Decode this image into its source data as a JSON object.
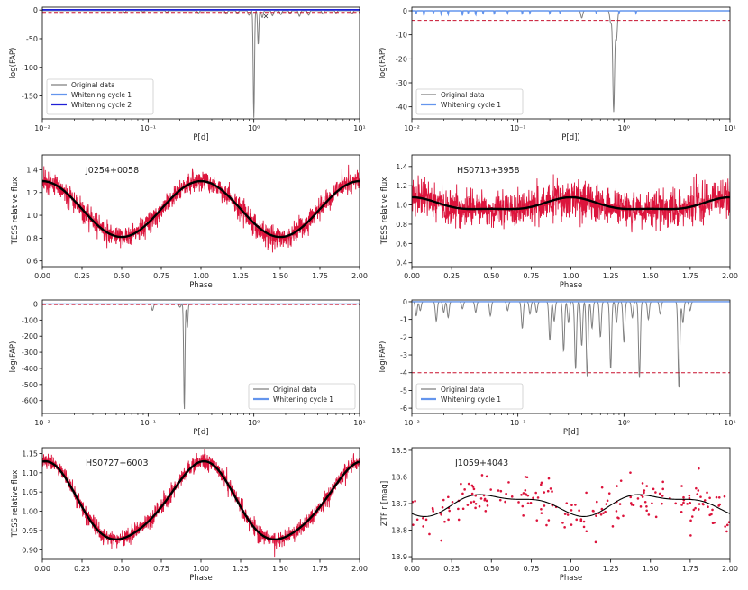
{
  "figure": {
    "width": 830,
    "height": 655
  },
  "colors": {
    "original": "#7f7f7f",
    "w1": "#6495ed",
    "w2": "#1f1fd6",
    "thresh": "#c8102e",
    "tess": "#dc143c",
    "model": "#000000"
  },
  "chart_data": [
    {
      "id": "p1",
      "type": "line",
      "scale": "log",
      "xlabel": "P[d]",
      "ylabel": "log(FAP)",
      "xlim": [
        0.01,
        10
      ],
      "ylim": [
        -190,
        5
      ],
      "xticks": [
        0.01,
        0.1,
        1,
        10
      ],
      "xticklabels": [
        "10⁻²",
        "10⁻¹",
        "10⁰",
        "10¹"
      ],
      "yticks": [
        0,
        -50,
        -100,
        -150
      ],
      "yticklabels": [
        "0",
        "-50",
        "-100",
        "-150"
      ],
      "threshold": -4,
      "baseline": {
        "original": -1,
        "w1": 0,
        "w2": 0.5
      },
      "dips": [
        [
          0.06,
          -3
        ],
        [
          0.09,
          -2
        ],
        [
          0.15,
          -3
        ],
        [
          0.3,
          -4
        ],
        [
          0.55,
          -6
        ],
        [
          0.7,
          -5
        ],
        [
          0.9,
          -8
        ],
        [
          1.0,
          -187
        ],
        [
          1.1,
          -60
        ],
        [
          1.2,
          -12
        ],
        [
          1.5,
          -9
        ],
        [
          1.8,
          -7
        ],
        [
          2.2,
          -5
        ],
        [
          2.7,
          -10
        ],
        [
          3.3,
          -8
        ],
        [
          4.5,
          -6
        ],
        [
          6.0,
          -4
        ],
        [
          8.5,
          -5
        ]
      ],
      "w1_dips": [],
      "w2_dips": [],
      "markers": [
        {
          "x": 1.3,
          "y": -10,
          "symbol": "×"
        }
      ],
      "legend": [
        "Original data",
        "Whitening cycle 1",
        "Whitening cycle 2"
      ],
      "legend_pos": "bottom-left"
    },
    {
      "id": "p2",
      "type": "line",
      "scale": "log",
      "xlabel": "P[d])",
      "ylabel": "log(FAP)",
      "xlim": [
        0.01,
        10
      ],
      "ylim": [
        -45,
        1.5
      ],
      "xticks": [
        0.01,
        0.1,
        1,
        10
      ],
      "xticklabels": [
        "10⁻²",
        "10⁻¹",
        "10⁰",
        "10¹"
      ],
      "yticks": [
        0,
        -10,
        -20,
        -30,
        -40
      ],
      "yticklabels": [
        "0",
        "-10",
        "-20",
        "-30",
        "-40"
      ],
      "threshold": -4,
      "baseline": {
        "original": 0,
        "w1": 0
      },
      "dips": [
        [
          0.4,
          -3
        ],
        [
          0.75,
          -5
        ],
        [
          0.8,
          -42
        ],
        [
          0.85,
          -12
        ]
      ],
      "w1_dips": [
        [
          0.011,
          -1.2
        ],
        [
          0.013,
          -2
        ],
        [
          0.016,
          -1
        ],
        [
          0.019,
          -2
        ],
        [
          0.022,
          -1.5
        ],
        [
          0.03,
          -2
        ],
        [
          0.034,
          -1
        ],
        [
          0.04,
          -1.8
        ],
        [
          0.047,
          -1.2
        ],
        [
          0.06,
          -1.5
        ],
        [
          0.08,
          -1
        ],
        [
          0.11,
          -1.4
        ],
        [
          0.13,
          -1
        ],
        [
          0.2,
          -1.2
        ],
        [
          0.25,
          -1
        ],
        [
          0.55,
          -1.2
        ],
        [
          0.9,
          -1
        ],
        [
          1.3,
          -1
        ]
      ],
      "w2_dips": [],
      "markers": [],
      "legend": [
        "Original data",
        "Whitening cycle 1"
      ],
      "legend_pos": "bottom-left"
    },
    {
      "id": "p3",
      "type": "line",
      "scale": "linear-phase",
      "xlabel": "Phase",
      "ylabel": "TESS relative flux",
      "xlim": [
        0,
        2
      ],
      "ylim": [
        0.55,
        1.53
      ],
      "xticks": [
        0,
        0.25,
        0.5,
        0.75,
        1,
        1.25,
        1.5,
        1.75,
        2
      ],
      "xticklabels": [
        "0.00",
        "0.25",
        "0.50",
        "0.75",
        "1.00",
        "1.25",
        "1.50",
        "1.75",
        "2.00"
      ],
      "yticks": [
        0.6,
        0.8,
        1.0,
        1.2,
        1.4
      ],
      "yticklabels": [
        "0.6",
        "0.8",
        "1.0",
        "1.2",
        "1.4"
      ],
      "title": "J0254+0058",
      "model": {
        "mean": 1.055,
        "a1": 0.245,
        "a2": 0.0,
        "phi1": 0,
        "phi2": 0
      },
      "noise": 0.085
    },
    {
      "id": "p4",
      "type": "line",
      "scale": "linear-phase",
      "xlabel": "Phase",
      "ylabel": "TESS relative flux",
      "xlim": [
        0,
        2
      ],
      "ylim": [
        0.36,
        1.52
      ],
      "xticks": [
        0,
        0.25,
        0.5,
        0.75,
        1,
        1.25,
        1.5,
        1.75,
        2
      ],
      "xticklabels": [
        "0.00",
        "0.25",
        "0.50",
        "0.75",
        "1.00",
        "1.25",
        "1.50",
        "1.75",
        "2.00"
      ],
      "yticks": [
        0.4,
        0.6,
        0.8,
        1.0,
        1.2,
        1.4
      ],
      "yticklabels": [
        "0.4",
        "0.6",
        "0.8",
        "1.0",
        "1.2",
        "1.4"
      ],
      "title": "HS0713+3958",
      "model": {
        "mean": 1.0,
        "a1": 0.06,
        "a2": 0.02,
        "phi1": 0,
        "phi2": 0
      },
      "noise": 0.17
    },
    {
      "id": "p5",
      "type": "line",
      "scale": "log",
      "xlabel": "P[d]",
      "ylabel": "log(FAP)",
      "xlim": [
        0.01,
        10
      ],
      "ylim": [
        -680,
        25
      ],
      "xticks": [
        0.01,
        0.1,
        1,
        10
      ],
      "xticklabels": [
        "10⁻²",
        "10⁻¹",
        "10⁰",
        "10¹"
      ],
      "yticks": [
        0,
        -100,
        -200,
        -300,
        -400,
        -500,
        -600
      ],
      "yticklabels": [
        "0",
        "-100",
        "-200",
        "-300",
        "-400",
        "-500",
        "-600"
      ],
      "threshold": -4,
      "baseline": {
        "original": 0,
        "w1": 0
      },
      "dips": [
        [
          0.11,
          -40
        ],
        [
          0.2,
          -20
        ],
        [
          0.22,
          -660
        ],
        [
          0.235,
          -150
        ]
      ],
      "w1_dips": [],
      "w2_dips": [],
      "markers": [],
      "legend": [
        "Original data",
        "Whitening cycle 1"
      ],
      "legend_pos": "bottom-right"
    },
    {
      "id": "p6",
      "type": "line",
      "scale": "log",
      "xlabel": "P[d]",
      "ylabel": "log(FAP)",
      "xlim": [
        0.01,
        10
      ],
      "ylim": [
        -6.3,
        0.1
      ],
      "xticks": [
        0.01,
        0.1,
        1,
        10
      ],
      "xticklabels": [
        "10⁻²",
        "10⁻¹",
        "10⁰",
        "10¹"
      ],
      "yticks": [
        0,
        -1,
        -2,
        -3,
        -4,
        -5,
        -6
      ],
      "yticklabels": [
        "0",
        "-1",
        "-2",
        "-3",
        "-4",
        "-5",
        "-6"
      ],
      "threshold": -4,
      "baseline": {
        "original": 0,
        "w1": 0
      },
      "dips": [
        [
          0.011,
          -0.8
        ],
        [
          0.012,
          -0.5
        ],
        [
          0.017,
          -1.1
        ],
        [
          0.02,
          -0.6
        ],
        [
          0.022,
          -0.9
        ],
        [
          0.03,
          -0.4
        ],
        [
          0.04,
          -0.6
        ],
        [
          0.055,
          -0.8
        ],
        [
          0.08,
          -0.5
        ],
        [
          0.11,
          -1.5
        ],
        [
          0.13,
          -0.7
        ],
        [
          0.15,
          -0.6
        ],
        [
          0.2,
          -2.2
        ],
        [
          0.22,
          -1.1
        ],
        [
          0.27,
          -2.8
        ],
        [
          0.3,
          -1.2
        ],
        [
          0.35,
          -3.8
        ],
        [
          0.4,
          -2.5
        ],
        [
          0.45,
          -4.2
        ],
        [
          0.5,
          -1.5
        ],
        [
          0.6,
          -2.0
        ],
        [
          0.75,
          -3.8
        ],
        [
          0.85,
          -1.2
        ],
        [
          1.0,
          -2.3
        ],
        [
          1.2,
          -0.9
        ],
        [
          1.4,
          -4.3
        ],
        [
          1.7,
          -1.0
        ],
        [
          2.2,
          -0.7
        ],
        [
          3.3,
          -4.9
        ],
        [
          3.6,
          -1.2
        ],
        [
          4.2,
          -0.5
        ]
      ],
      "w1_dips": [],
      "w2_dips": [],
      "markers": [],
      "legend": [
        "Original data",
        "Whitening cycle 1"
      ],
      "legend_pos": "bottom-left"
    },
    {
      "id": "p7",
      "type": "line",
      "scale": "linear-phase",
      "xlabel": "Phase",
      "ylabel": "TESS relative flux",
      "xlim": [
        0,
        2
      ],
      "ylim": [
        0.875,
        1.165
      ],
      "xticks": [
        0,
        0.25,
        0.5,
        0.75,
        1,
        1.25,
        1.5,
        1.75,
        2
      ],
      "xticklabels": [
        "0.00",
        "0.25",
        "0.50",
        "0.75",
        "1.00",
        "1.25",
        "1.50",
        "1.75",
        "2.00"
      ],
      "yticks": [
        0.9,
        0.95,
        1.0,
        1.05,
        1.1,
        1.15
      ],
      "yticklabels": [
        "0.90",
        "0.95",
        "1.00",
        "1.05",
        "1.10",
        "1.15"
      ],
      "title": "HS0727+6003",
      "model": {
        "mean": 1.02,
        "a1": 0.1,
        "a2": 0.012,
        "phi1": 0,
        "phi2": 0.06
      },
      "noise": 0.02
    },
    {
      "id": "p8",
      "type": "scatter",
      "scale": "linear-phase",
      "xlabel": "Phase",
      "ylabel": "ZTF r [mag]",
      "xlim": [
        0,
        2
      ],
      "ylim": [
        18.91,
        18.49
      ],
      "xticks": [
        0,
        0.25,
        0.5,
        0.75,
        1,
        1.25,
        1.5,
        1.75,
        2
      ],
      "xticklabels": [
        "0.00",
        "0.25",
        "0.50",
        "0.75",
        "1.00",
        "1.25",
        "1.50",
        "1.75",
        "2.00"
      ],
      "yticks": [
        18.5,
        18.6,
        18.7,
        18.8,
        18.9
      ],
      "yticklabels": [
        "18.5",
        "18.6",
        "18.7",
        "18.8",
        "18.9"
      ],
      "title": "J1059+4043",
      "model": {
        "mean": 18.7,
        "a1": 0.035,
        "a2": 0.015,
        "phi1": 0.05,
        "phi2": 0.1
      },
      "noise": 0.09,
      "npoints": 200
    }
  ]
}
